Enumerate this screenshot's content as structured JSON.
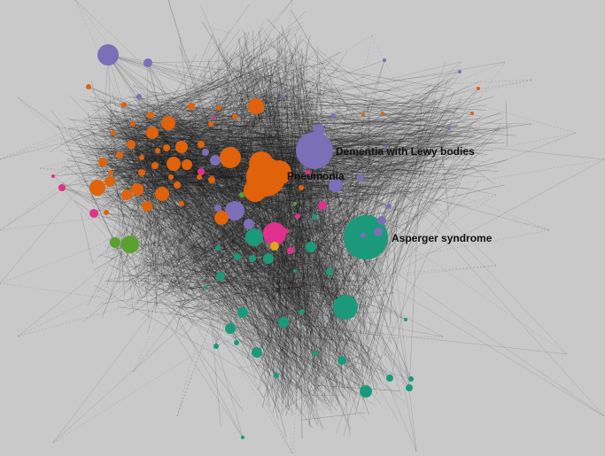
{
  "graph": {
    "background": "#c9c9c9",
    "edge_color": "#1e1e1e",
    "palette": {
      "orange": "#e0620a",
      "purple": "#7b6fb8",
      "green": "#1a9a7a",
      "pink": "#e0308c",
      "lime": "#5aa02c",
      "yellow": "#e6a416"
    },
    "labels": [
      {
        "id": "dlb",
        "text": "Dementia with Lewy bodies"
      },
      {
        "id": "pneumonia",
        "text": "Pneumonia"
      },
      {
        "id": "asperger",
        "text": "Asperger syndrome"
      }
    ]
  }
}
